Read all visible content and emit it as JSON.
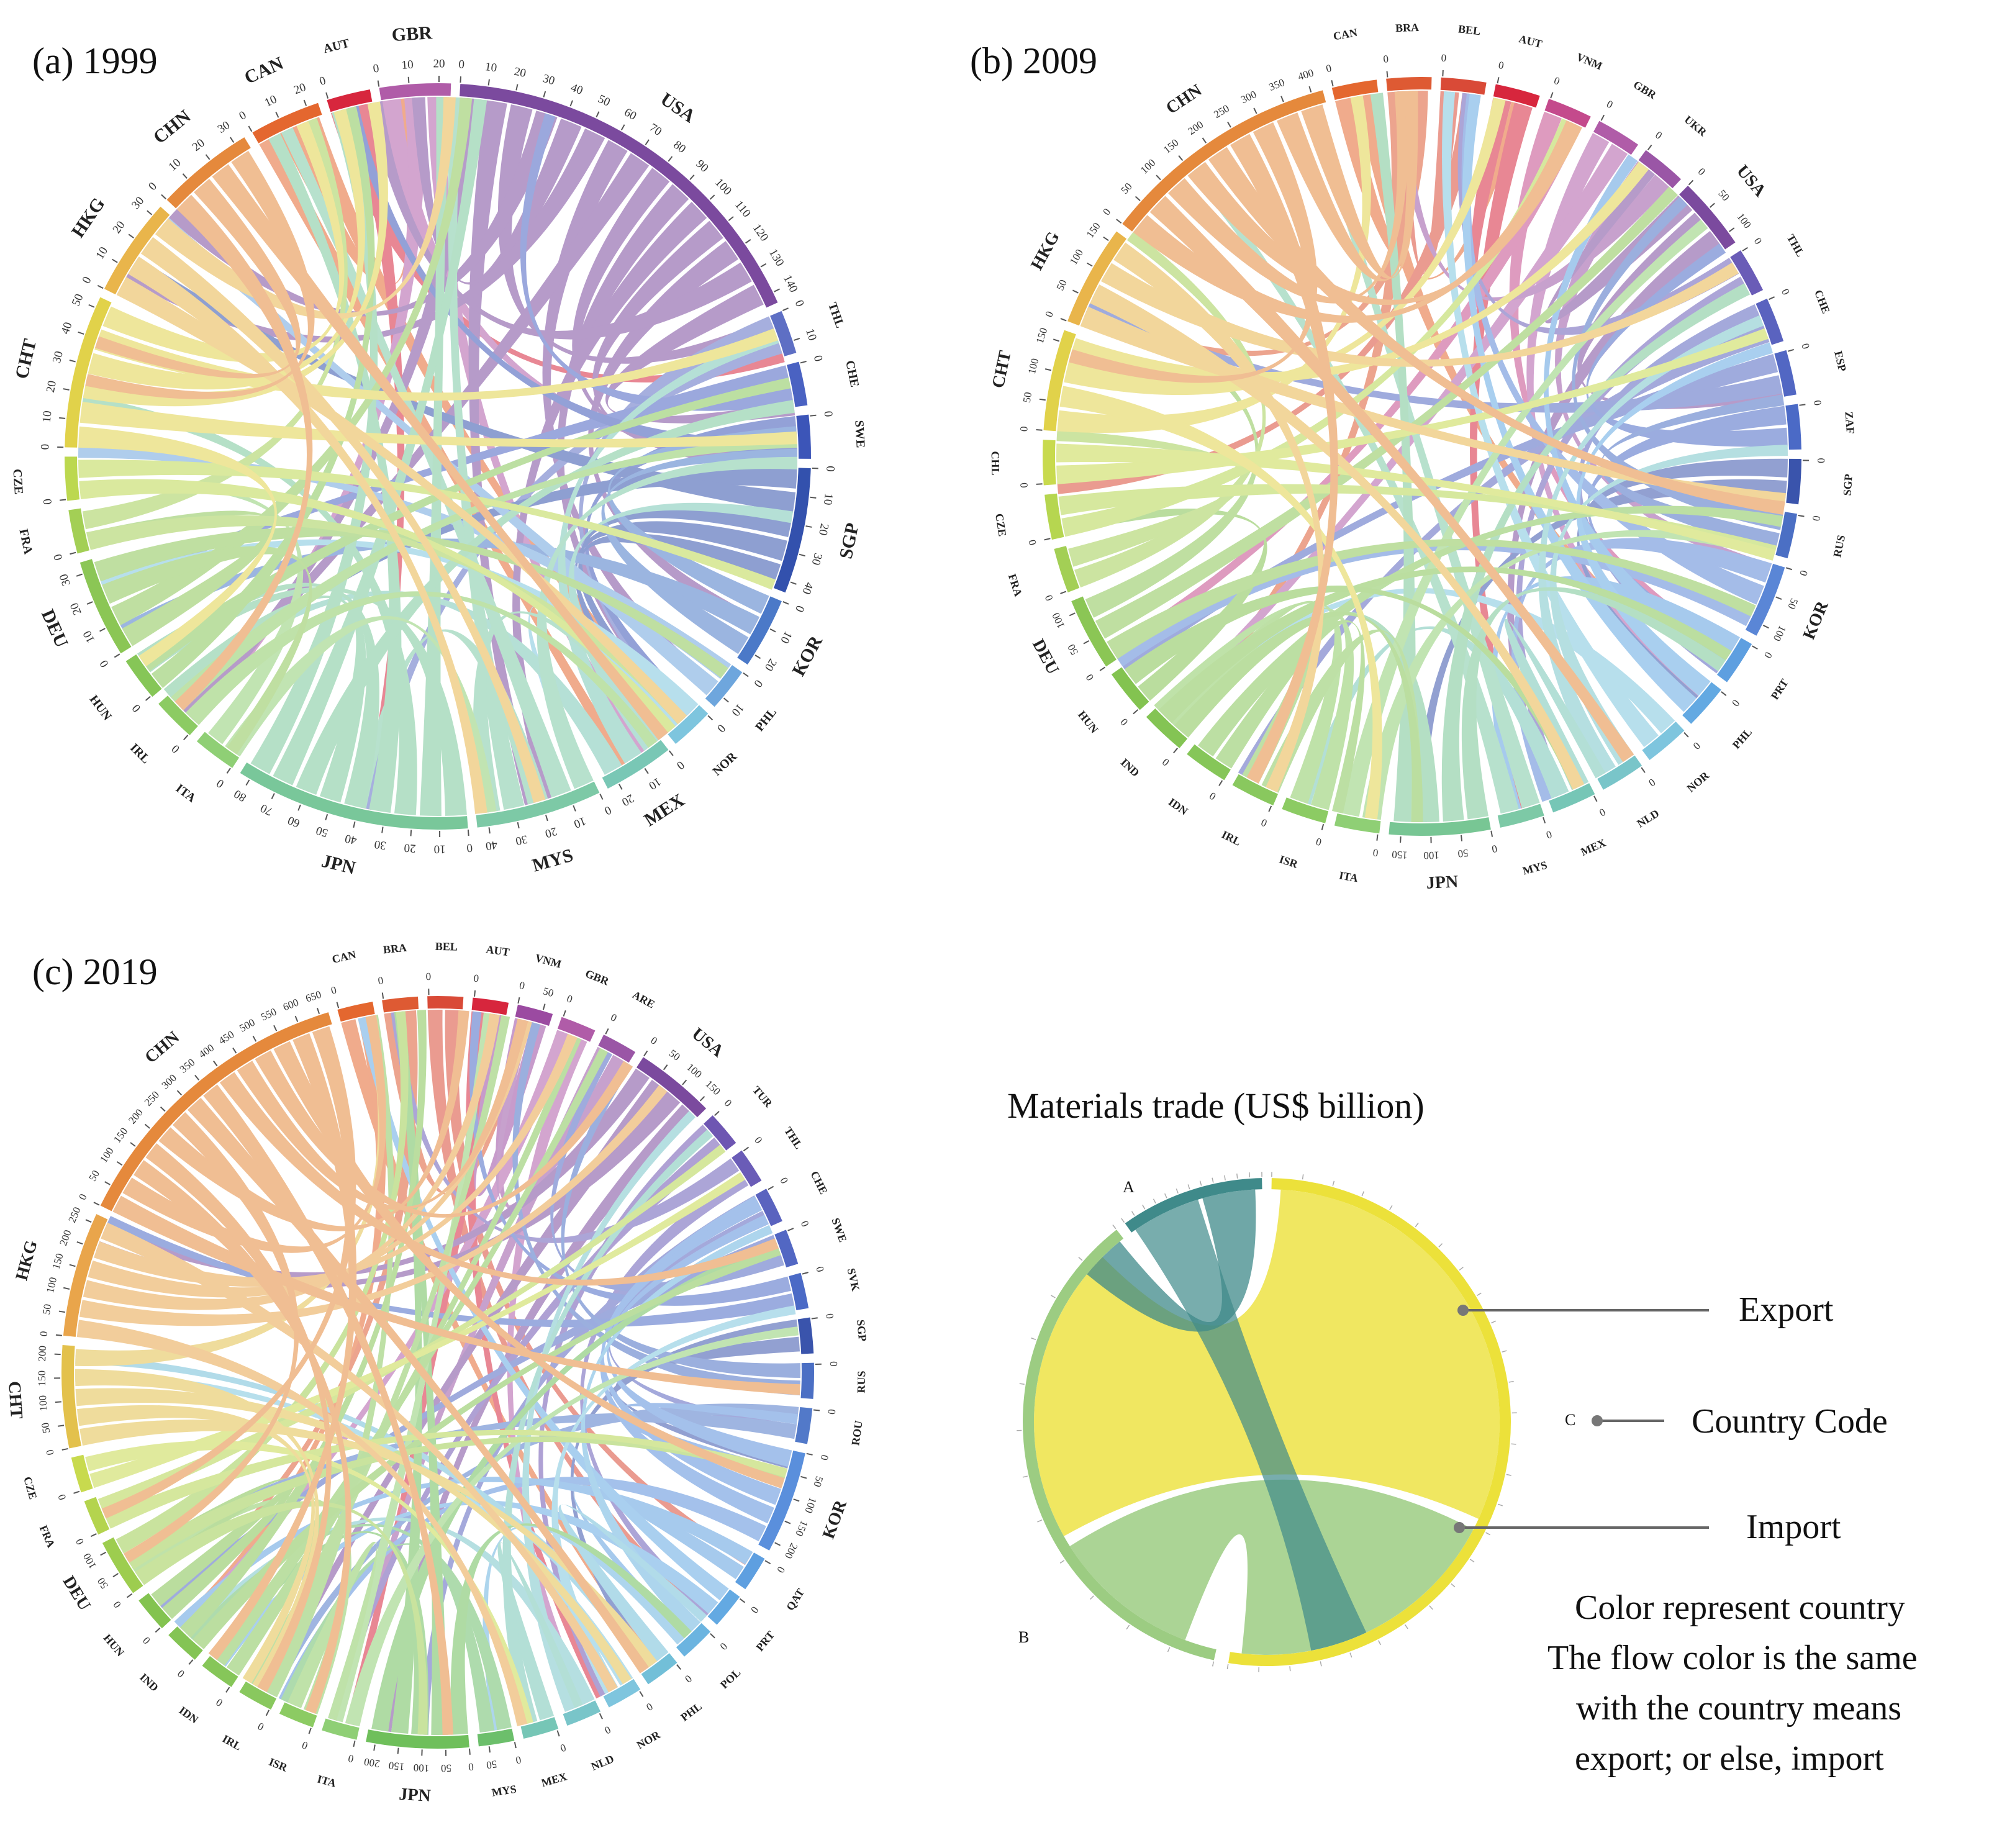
{
  "panels": [
    {
      "title": "(a) 1999",
      "segments": [
        {
          "code": "CAN",
          "color": "#e4672f",
          "ticks": [
            "0",
            "10",
            "20"
          ]
        },
        {
          "code": "AUT",
          "color": "#d7263d",
          "ticks": [
            "0"
          ]
        },
        {
          "code": "GBR",
          "color": "#b05ca8",
          "ticks": [
            "0",
            "10",
            "20"
          ]
        },
        {
          "code": "USA",
          "color": "#7b4a9e",
          "ticks": [
            "0",
            "10",
            "20",
            "30",
            "40",
            "50",
            "60",
            "70",
            "80",
            "90",
            "100",
            "110",
            "120",
            "130",
            "140"
          ]
        },
        {
          "code": "THL",
          "color": "#5e6fc4",
          "ticks": [
            "0",
            "10"
          ]
        },
        {
          "code": "CHE",
          "color": "#4a62c2",
          "ticks": [
            "0"
          ]
        },
        {
          "code": "SWE",
          "color": "#3c55b8",
          "ticks": [
            "0"
          ]
        },
        {
          "code": "SGP",
          "color": "#3351ad",
          "ticks": [
            "0",
            "10",
            "20",
            "30",
            "40"
          ]
        },
        {
          "code": "KOR",
          "color": "#4b79c8",
          "ticks": [
            "0",
            "10",
            "20"
          ]
        },
        {
          "code": "PHL",
          "color": "#6ea6dd",
          "ticks": [
            "0",
            "10"
          ]
        },
        {
          "code": "NOR",
          "color": "#7ec5de",
          "ticks": [
            "0"
          ]
        },
        {
          "code": "MEX",
          "color": "#79c7b5",
          "ticks": [
            "0",
            "10",
            "20"
          ]
        },
        {
          "code": "MYS",
          "color": "#7dc9a6",
          "ticks": [
            "0",
            "10",
            "20",
            "30",
            "40"
          ]
        },
        {
          "code": "JPN",
          "color": "#79c79a",
          "ticks": [
            "0",
            "10",
            "20",
            "30",
            "40",
            "50",
            "60",
            "70",
            "80"
          ]
        },
        {
          "code": "ITA",
          "color": "#8fcf75",
          "ticks": [
            "0"
          ]
        },
        {
          "code": "IRL",
          "color": "#8ccb63",
          "ticks": [
            "0"
          ]
        },
        {
          "code": "HUN",
          "color": "#86c657",
          "ticks": [
            "0"
          ]
        },
        {
          "code": "DEU",
          "color": "#8bc655",
          "ticks": [
            "0",
            "10",
            "20",
            "30"
          ]
        },
        {
          "code": "FRA",
          "color": "#a3cf55",
          "ticks": [
            "0"
          ]
        },
        {
          "code": "CZE",
          "color": "#bcd84f",
          "ticks": [
            "0"
          ]
        },
        {
          "code": "CHT",
          "color": "#e1d24a",
          "ticks": [
            "0",
            "10",
            "20",
            "30",
            "40",
            "50"
          ]
        },
        {
          "code": "HKG",
          "color": "#e9b54b",
          "ticks": [
            "0",
            "10",
            "20",
            "30"
          ]
        },
        {
          "code": "CHN",
          "color": "#e5893c",
          "ticks": [
            "0",
            "10",
            "20",
            "30"
          ]
        }
      ]
    },
    {
      "title": "(b) 2009",
      "segments": [
        {
          "code": "CAN",
          "color": "#e4672f",
          "ticks": [
            "0"
          ]
        },
        {
          "code": "BRA",
          "color": "#de5a33",
          "ticks": [
            "0"
          ]
        },
        {
          "code": "BEL",
          "color": "#d94a37",
          "ticks": [
            "0"
          ]
        },
        {
          "code": "AUT",
          "color": "#d7263d",
          "ticks": [
            "0"
          ]
        },
        {
          "code": "VNM",
          "color": "#c44a8c",
          "ticks": [
            "0"
          ]
        },
        {
          "code": "GBR",
          "color": "#b05ca8",
          "ticks": [
            "0"
          ]
        },
        {
          "code": "UKR",
          "color": "#9a56a6",
          "ticks": [
            "0"
          ]
        },
        {
          "code": "USA",
          "color": "#7b4a9e",
          "ticks": [
            "0",
            "50",
            "100"
          ]
        },
        {
          "code": "THL",
          "color": "#6a5cb7",
          "ticks": [
            "0"
          ]
        },
        {
          "code": "CHE",
          "color": "#5a63bf",
          "ticks": [
            "0"
          ]
        },
        {
          "code": "ESP",
          "color": "#5267c3",
          "ticks": [
            "0"
          ]
        },
        {
          "code": "ZAF",
          "color": "#4b6ac6",
          "ticks": [
            "0"
          ]
        },
        {
          "code": "SGP",
          "color": "#3a54ac",
          "ticks": [
            "0"
          ]
        },
        {
          "code": "RUS",
          "color": "#4b6fc4",
          "ticks": [
            "0"
          ]
        },
        {
          "code": "KOR",
          "color": "#5a86d6",
          "ticks": [
            "0",
            "50",
            "100"
          ]
        },
        {
          "code": "PRT",
          "color": "#5e9fe0",
          "ticks": [
            "0"
          ]
        },
        {
          "code": "PHL",
          "color": "#63a9e2",
          "ticks": [
            "0"
          ]
        },
        {
          "code": "NOR",
          "color": "#7ec5de",
          "ticks": [
            "0"
          ]
        },
        {
          "code": "NLD",
          "color": "#79c5c9",
          "ticks": [
            "0"
          ]
        },
        {
          "code": "MEX",
          "color": "#76c6b6",
          "ticks": [
            "0"
          ]
        },
        {
          "code": "MYS",
          "color": "#7dc9a6",
          "ticks": [
            "0"
          ]
        },
        {
          "code": "JPN",
          "color": "#78c694",
          "ticks": [
            "0",
            "50",
            "100",
            "150"
          ]
        },
        {
          "code": "ITA",
          "color": "#8fcf75",
          "ticks": [
            "0"
          ]
        },
        {
          "code": "ISR",
          "color": "#8ccb63",
          "ticks": [
            "0"
          ]
        },
        {
          "code": "IRL",
          "color": "#89c85e",
          "ticks": [
            "0"
          ]
        },
        {
          "code": "IDN",
          "color": "#86c659",
          "ticks": [
            "0"
          ]
        },
        {
          "code": "IND",
          "color": "#84c454",
          "ticks": [
            "0"
          ]
        },
        {
          "code": "HUN",
          "color": "#83c350",
          "ticks": [
            "0"
          ]
        },
        {
          "code": "DEU",
          "color": "#8bc655",
          "ticks": [
            "0",
            "50",
            "100"
          ]
        },
        {
          "code": "FRA",
          "color": "#a3cf55",
          "ticks": [
            "0"
          ]
        },
        {
          "code": "CZE",
          "color": "#b6d650",
          "ticks": [
            "0"
          ]
        },
        {
          "code": "CHL",
          "color": "#c8da4e",
          "ticks": [
            "0"
          ]
        },
        {
          "code": "CHT",
          "color": "#e1d24a",
          "ticks": [
            "0",
            "50",
            "100",
            "150"
          ]
        },
        {
          "code": "HKG",
          "color": "#e9b54b",
          "ticks": [
            "0",
            "50",
            "100",
            "150"
          ]
        },
        {
          "code": "CHN",
          "color": "#e5893c",
          "ticks": [
            "0",
            "50",
            "100",
            "150",
            "200",
            "250",
            "300",
            "350",
            "400"
          ]
        }
      ]
    },
    {
      "title": "(c) 2019",
      "segments": [
        {
          "code": "CAN",
          "color": "#e4672f",
          "ticks": [
            "0"
          ]
        },
        {
          "code": "BRA",
          "color": "#de5a33",
          "ticks": [
            "0"
          ]
        },
        {
          "code": "BEL",
          "color": "#d94a37",
          "ticks": [
            "0"
          ]
        },
        {
          "code": "AUT",
          "color": "#d7263d",
          "ticks": [
            "0"
          ]
        },
        {
          "code": "VNM",
          "color": "#9b4aa1",
          "ticks": [
            "0",
            "50"
          ]
        },
        {
          "code": "GBR",
          "color": "#b05ca8",
          "ticks": [
            "0"
          ]
        },
        {
          "code": "ARE",
          "color": "#9a56a6",
          "ticks": [
            "0"
          ]
        },
        {
          "code": "USA",
          "color": "#7b4a9e",
          "ticks": [
            "0",
            "50",
            "100",
            "150"
          ]
        },
        {
          "code": "TUR",
          "color": "#6e56b2",
          "ticks": [
            "0"
          ]
        },
        {
          "code": "THL",
          "color": "#6a5cb7",
          "ticks": [
            "0"
          ]
        },
        {
          "code": "CHE",
          "color": "#5a63bf",
          "ticks": [
            "0"
          ]
        },
        {
          "code": "SWE",
          "color": "#5267c3",
          "ticks": [
            "0"
          ]
        },
        {
          "code": "SVK",
          "color": "#4b6ac6",
          "ticks": [
            "0"
          ]
        },
        {
          "code": "SGP",
          "color": "#3a54ac",
          "ticks": [
            "0"
          ]
        },
        {
          "code": "RUS",
          "color": "#4b6fc4",
          "ticks": [
            "0"
          ]
        },
        {
          "code": "ROU",
          "color": "#5279c9",
          "ticks": [
            "0"
          ]
        },
        {
          "code": "KOR",
          "color": "#5a8fdc",
          "ticks": [
            "0",
            "50",
            "100",
            "150",
            "200"
          ]
        },
        {
          "code": "QAT",
          "color": "#5e9fe0",
          "ticks": [
            "0"
          ]
        },
        {
          "code": "PRT",
          "color": "#63a9e2",
          "ticks": [
            "0"
          ]
        },
        {
          "code": "POL",
          "color": "#6bb4e0",
          "ticks": [
            "0"
          ]
        },
        {
          "code": "PHL",
          "color": "#72bfd8",
          "ticks": [
            "0"
          ]
        },
        {
          "code": "NOR",
          "color": "#7ec5de",
          "ticks": [
            "0"
          ]
        },
        {
          "code": "NLD",
          "color": "#79c5c9",
          "ticks": [
            "0"
          ]
        },
        {
          "code": "MEX",
          "color": "#76c6b6",
          "ticks": [
            "0"
          ]
        },
        {
          "code": "MYS",
          "color": "#6cbf6b",
          "ticks": [
            "0",
            "50"
          ]
        },
        {
          "code": "JPN",
          "color": "#6fbf5b",
          "ticks": [
            "0",
            "50",
            "100",
            "150",
            "200"
          ]
        },
        {
          "code": "ITA",
          "color": "#8fcf75",
          "ticks": [
            "0"
          ]
        },
        {
          "code": "ISR",
          "color": "#8ccb63",
          "ticks": [
            "0"
          ]
        },
        {
          "code": "IRL",
          "color": "#89c85e",
          "ticks": [
            "0"
          ]
        },
        {
          "code": "IDN",
          "color": "#86c659",
          "ticks": [
            "0"
          ]
        },
        {
          "code": "IND",
          "color": "#84c454",
          "ticks": [
            "0"
          ]
        },
        {
          "code": "HUN",
          "color": "#83c350",
          "ticks": [
            "0"
          ]
        },
        {
          "code": "DEU",
          "color": "#9dcd4f",
          "ticks": [
            "0",
            "50",
            "100"
          ]
        },
        {
          "code": "FRA",
          "color": "#b4d44e",
          "ticks": [
            "0"
          ]
        },
        {
          "code": "CZE",
          "color": "#c8da4e",
          "ticks": [
            "0"
          ]
        },
        {
          "code": "CHT",
          "color": "#e3c14c",
          "ticks": [
            "0",
            "50",
            "100",
            "150",
            "200"
          ]
        },
        {
          "code": "HKG",
          "color": "#e9a54b",
          "ticks": [
            "0",
            "50",
            "100",
            "150",
            "200",
            "250"
          ]
        },
        {
          "code": "CHN",
          "color": "#e5893c",
          "ticks": [
            "0",
            "50",
            "100",
            "150",
            "200",
            "250",
            "300",
            "350",
            "400",
            "450",
            "500",
            "550",
            "600",
            "650"
          ]
        }
      ]
    }
  ],
  "legend": {
    "title": "Materials trade (US$ billion)",
    "node_a": "A",
    "node_b": "B",
    "node_c": "C",
    "export_label": "Export",
    "country_code_label": "Country Code",
    "import_label": "Import",
    "note_line1": "Color represent country",
    "note_line2": "The flow color is the same",
    "note_line3": "with the country means",
    "note_line4": "export; or else, import",
    "colors": {
      "a": "#3f8a8a",
      "b": "#9ccc82",
      "c": "#ece13a"
    }
  }
}
